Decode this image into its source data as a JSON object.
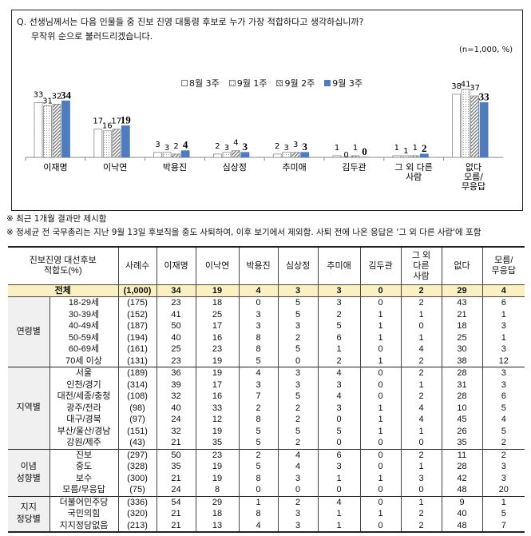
{
  "question": {
    "line1": "Q. 선생님께서는 다음 인물들 중 진보 진영 대통령 후보로 누가 가장 적합하다고 생각하십니까?",
    "line2": "무작위 순으로 불러드리겠습니다.",
    "sample": "(n=1,000, %)"
  },
  "chart_data": {
    "type": "bar",
    "categories": [
      "이재명",
      "이낙연",
      "박용진",
      "심상정",
      "추미애",
      "김두관",
      "그 외 다른 사람",
      "없다 모름/ 무응답"
    ],
    "series": [
      {
        "name": "8월 3주",
        "values": [
          33,
          17,
          3,
          2,
          2,
          1,
          1,
          38
        ],
        "color": "#ffffff",
        "pattern": "none"
      },
      {
        "name": "9월 1주",
        "values": [
          31,
          16,
          3,
          3,
          3,
          0,
          1,
          41
        ],
        "color": "#ffffff",
        "pattern": "dots"
      },
      {
        "name": "9월 2주",
        "values": [
          32,
          17,
          2,
          4,
          3,
          1,
          1,
          37
        ],
        "color": "#ffffff",
        "pattern": "hatch"
      },
      {
        "name": "9월 3주",
        "values": [
          34,
          19,
          4,
          3,
          3,
          0,
          2,
          33
        ],
        "color": "#4f7bbf",
        "pattern": "solid"
      }
    ],
    "ylim": [
      0,
      45
    ],
    "xlabel": "",
    "ylabel": "",
    "legend": "top-center"
  },
  "notes": [
    "※ 최근 1개월 결과만 제시함",
    "※ 정세균 전 국무총리는 지난 9월 13일 후보직을 중도 사퇴하여, 이후 보기에서 제외함. 사퇴 전에 나온 응답은 '그 외 다른 사람'에 포함"
  ],
  "table": {
    "headers": [
      "진보진영 대선후보\n적합도(%)",
      "사례수",
      "이재명",
      "이낙연",
      "박용진",
      "심상정",
      "추미애",
      "김두관",
      "그 외\n다른\n사람",
      "없다",
      "모름/\n무응답"
    ],
    "total": [
      "전체",
      "(1,000)",
      "34",
      "19",
      "4",
      "3",
      "3",
      "0",
      "2",
      "29",
      "4"
    ],
    "groups": [
      {
        "label": "연령별",
        "rows": [
          [
            "18-29세",
            "(175)",
            "23",
            "18",
            "0",
            "5",
            "3",
            "0",
            "2",
            "43",
            "6"
          ],
          [
            "30-39세",
            "(152)",
            "41",
            "25",
            "3",
            "5",
            "2",
            "1",
            "1",
            "21",
            "1"
          ],
          [
            "40-49세",
            "(187)",
            "50",
            "17",
            "3",
            "3",
            "5",
            "1",
            "0",
            "18",
            "3"
          ],
          [
            "50-59세",
            "(194)",
            "40",
            "16",
            "8",
            "2",
            "6",
            "1",
            "1",
            "25",
            "1"
          ],
          [
            "60-69세",
            "(161)",
            "25",
            "23",
            "8",
            "5",
            "1",
            "0",
            "4",
            "30",
            "3"
          ],
          [
            "70세 이상",
            "(131)",
            "23",
            "19",
            "5",
            "0",
            "2",
            "1",
            "2",
            "38",
            "12"
          ]
        ]
      },
      {
        "label": "지역별",
        "rows": [
          [
            "서울",
            "(189)",
            "36",
            "19",
            "4",
            "3",
            "4",
            "0",
            "2",
            "28",
            "3"
          ],
          [
            "인천/경기",
            "(314)",
            "39",
            "17",
            "3",
            "3",
            "3",
            "0",
            "1",
            "31",
            "3"
          ],
          [
            "대전/세종/충청",
            "(108)",
            "32",
            "16",
            "7",
            "5",
            "4",
            "0",
            "2",
            "28",
            "6"
          ],
          [
            "광주/전라",
            "(98)",
            "40",
            "33",
            "2",
            "2",
            "3",
            "1",
            "4",
            "10",
            "5"
          ],
          [
            "대구/경북",
            "(97)",
            "24",
            "12",
            "8",
            "2",
            "0",
            "1",
            "4",
            "45",
            "4"
          ],
          [
            "부산/울산/경남",
            "(151)",
            "32",
            "19",
            "5",
            "5",
            "5",
            "1",
            "1",
            "26",
            "5"
          ],
          [
            "강원/제주",
            "(43)",
            "21",
            "35",
            "5",
            "2",
            "0",
            "0",
            "0",
            "35",
            "2"
          ]
        ]
      },
      {
        "label": "이념\n성향별",
        "rows": [
          [
            "진보",
            "(297)",
            "50",
            "23",
            "2",
            "4",
            "6",
            "0",
            "2",
            "11",
            "2"
          ],
          [
            "중도",
            "(328)",
            "35",
            "19",
            "5",
            "4",
            "3",
            "0",
            "1",
            "28",
            "3"
          ],
          [
            "보수",
            "(300)",
            "21",
            "19",
            "8",
            "3",
            "1",
            "1",
            "3",
            "42",
            "3"
          ],
          [
            "모름/무응답",
            "(75)",
            "24",
            "8",
            "0",
            "0",
            "0",
            "0",
            "0",
            "48",
            "20"
          ]
        ]
      },
      {
        "label": "지지\n정당별",
        "rows": [
          [
            "더불어민주당",
            "(336)",
            "54",
            "29",
            "1",
            "2",
            "4",
            "0",
            "1",
            "9",
            "1"
          ],
          [
            "국민의힘",
            "(320)",
            "21",
            "18",
            "8",
            "3",
            "1",
            "1",
            "2",
            "40",
            "5"
          ],
          [
            "지지정당없음",
            "(213)",
            "21",
            "13",
            "4",
            "3",
            "1",
            "0",
            "2",
            "48",
            "7"
          ]
        ]
      }
    ]
  }
}
